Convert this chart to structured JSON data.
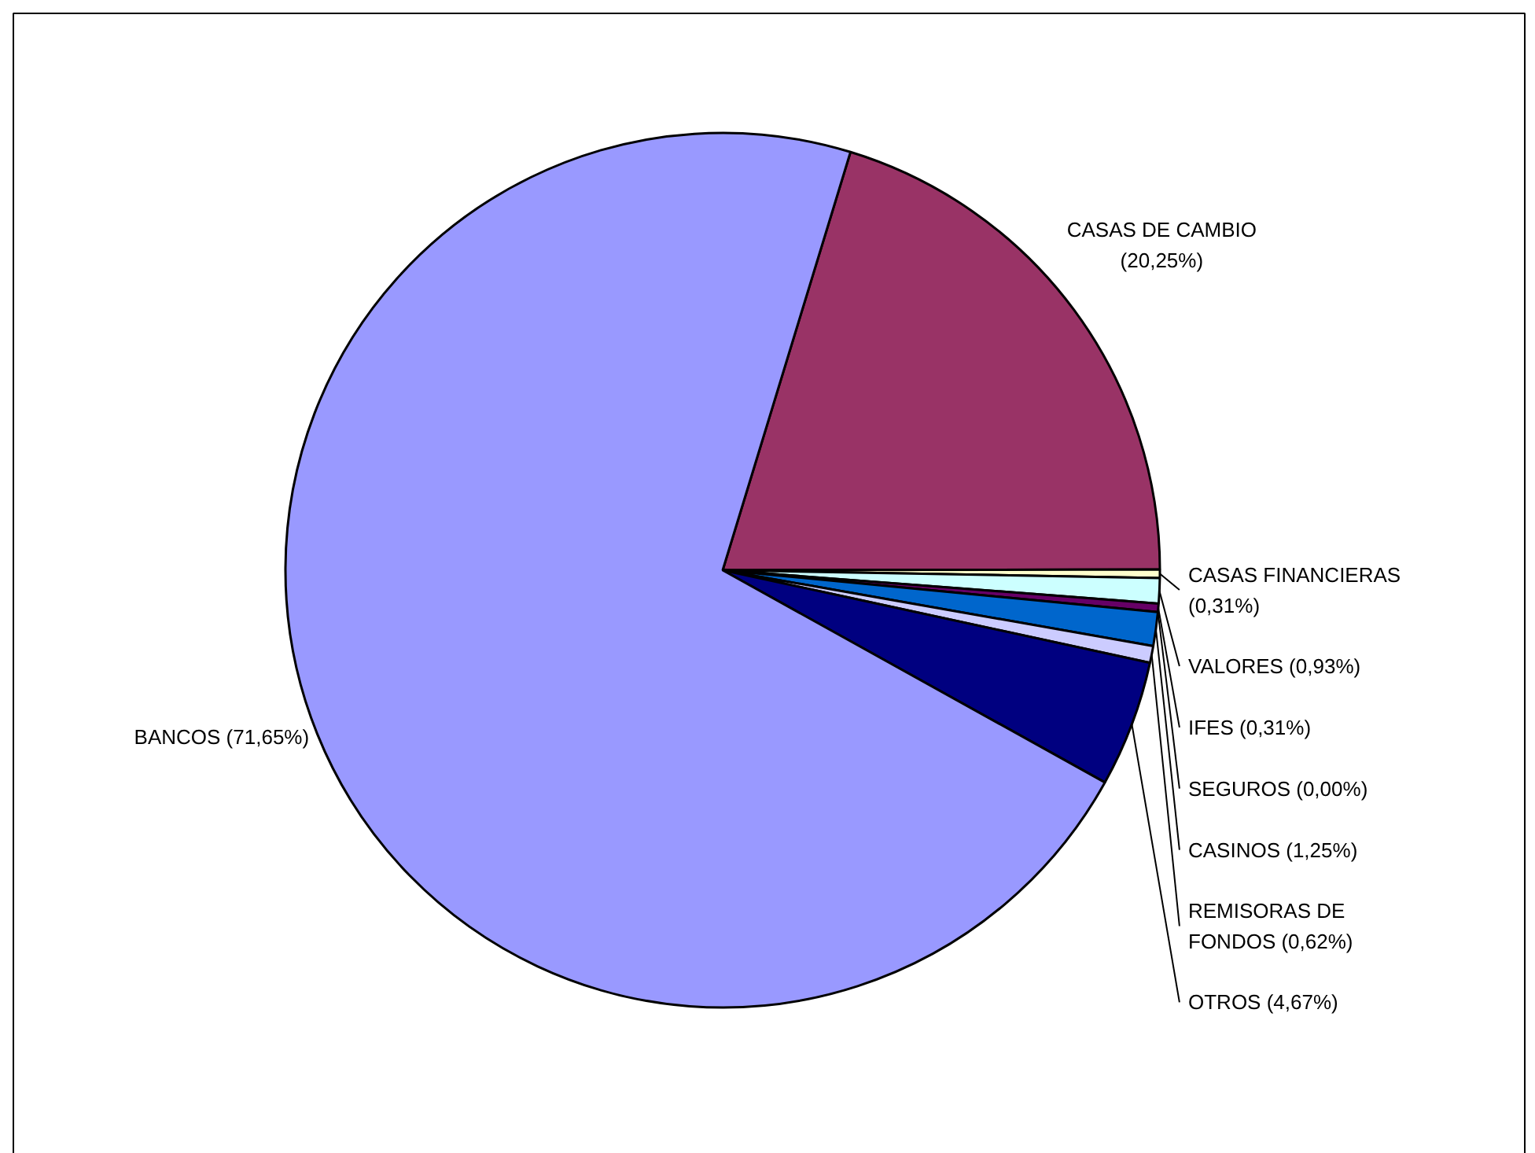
{
  "chart_data": {
    "type": "pie",
    "categories": [
      "CASAS DE CAMBIO",
      "CASAS FINANCIERAS",
      "VALORES",
      "IFES",
      "SEGUROS",
      "CASINOS",
      "REMISORAS DE FONDOS",
      "OTROS",
      "BANCOS"
    ],
    "values": [
      20.25,
      0.31,
      0.93,
      0.31,
      0.0,
      1.25,
      0.62,
      4.67,
      71.65
    ],
    "value_labels": [
      "(20,25%)",
      "(0,31%)",
      "(0,93%)",
      "(0,31%)",
      "(0,00%)",
      "(1,25%)",
      "(0,62%)",
      "(4,67%)",
      "(71,65%)"
    ],
    "colors": [
      "#993366",
      "#ffffcc",
      "#ccffff",
      "#660066",
      null,
      "#0066cc",
      "#ccccff",
      "#000080",
      "#9999ff"
    ]
  }
}
